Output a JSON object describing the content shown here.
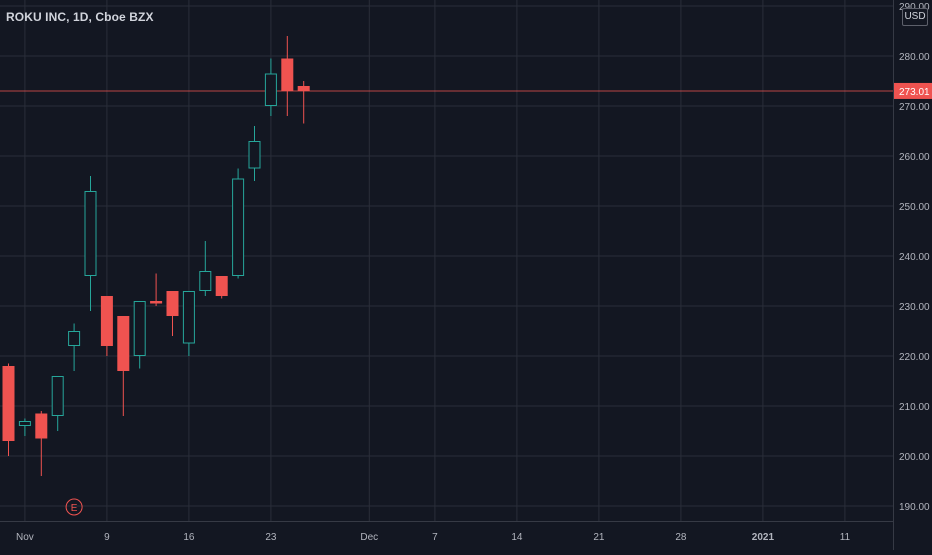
{
  "header": {
    "title": "ROKU INC, 1D, Cboe BZX",
    "currency": "USD"
  },
  "chart_data": {
    "type": "candlestick",
    "ylim": [
      187,
      292
    ],
    "y_ticks": [
      "190.00",
      "200.00",
      "210.00",
      "220.00",
      "230.00",
      "240.00",
      "250.00",
      "260.00",
      "270.00",
      "280.00",
      "290.00"
    ],
    "x_tick_labels": [
      {
        "label": "Nov",
        "bold": false
      },
      {
        "label": "9",
        "bold": false
      },
      {
        "label": "16",
        "bold": false
      },
      {
        "label": "23",
        "bold": false
      },
      {
        "label": "Dec",
        "bold": false
      },
      {
        "label": "7",
        "bold": false
      },
      {
        "label": "14",
        "bold": false
      },
      {
        "label": "21",
        "bold": false
      },
      {
        "label": "28",
        "bold": false
      },
      {
        "label": "2021",
        "bold": true
      },
      {
        "label": "11",
        "bold": false
      }
    ],
    "last_price": "273.01",
    "candles": [
      {
        "date": "2020-10-30",
        "open": 218,
        "high": 218.5,
        "low": 200,
        "close": 203
      },
      {
        "date": "2020-11-02",
        "open": 206,
        "high": 207.5,
        "low": 204,
        "close": 207
      },
      {
        "date": "2020-11-03",
        "open": 208.5,
        "high": 209,
        "low": 196,
        "close": 203.5
      },
      {
        "date": "2020-11-04",
        "open": 208,
        "high": 216,
        "low": 205,
        "close": 216
      },
      {
        "date": "2020-11-05",
        "open": 222,
        "high": 226.5,
        "low": 217,
        "close": 225
      },
      {
        "date": "2020-11-06",
        "open": 236,
        "high": 256,
        "low": 229,
        "close": 253
      },
      {
        "date": "2020-11-09",
        "open": 232,
        "high": 232,
        "low": 220,
        "close": 222
      },
      {
        "date": "2020-11-10",
        "open": 228,
        "high": 228,
        "low": 208,
        "close": 217
      },
      {
        "date": "2020-11-11",
        "open": 220,
        "high": 231,
        "low": 217.5,
        "close": 231
      },
      {
        "date": "2020-11-12",
        "open": 231,
        "high": 236.5,
        "low": 230,
        "close": 230.5
      },
      {
        "date": "2020-11-13",
        "open": 233,
        "high": 233,
        "low": 224,
        "close": 228
      },
      {
        "date": "2020-11-16",
        "open": 222.5,
        "high": 233,
        "low": 220,
        "close": 233
      },
      {
        "date": "2020-11-17",
        "open": 233,
        "high": 243,
        "low": 232,
        "close": 237
      },
      {
        "date": "2020-11-18",
        "open": 236,
        "high": 236,
        "low": 231.5,
        "close": 232
      },
      {
        "date": "2020-11-19",
        "open": 236,
        "high": 257.5,
        "low": 235.5,
        "close": 255.5
      },
      {
        "date": "2020-11-20",
        "open": 257.5,
        "high": 266,
        "low": 255,
        "close": 263
      },
      {
        "date": "2020-11-23",
        "open": 270,
        "high": 279.5,
        "low": 268,
        "close": 276.5
      },
      {
        "date": "2020-11-24",
        "open": 279.5,
        "high": 284,
        "low": 268,
        "close": 273
      },
      {
        "date": "2020-11-25",
        "open": 274,
        "high": 275,
        "low": 266.5,
        "close": 273
      }
    ],
    "events": [
      {
        "date": "2020-11-05",
        "label": "E"
      }
    ],
    "colors": {
      "background": "#131722",
      "grid": "#2a2e39",
      "up": "#26a69a",
      "down": "#ef5350",
      "axis_text": "#b2b5be",
      "price_line": "#ef5350"
    }
  }
}
